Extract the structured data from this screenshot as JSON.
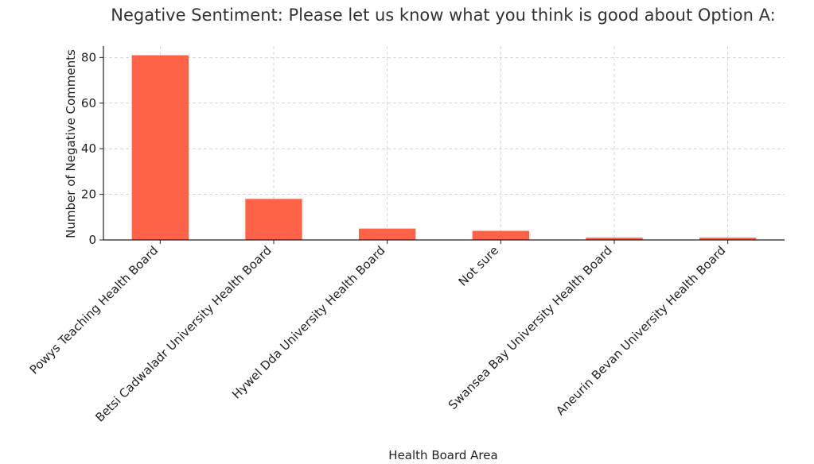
{
  "chart_data": {
    "type": "bar",
    "title": "Negative Sentiment: Please let us know what you think is good about Option A:",
    "xlabel": "Health Board Area",
    "ylabel": "Number of Negative Comments",
    "categories": [
      "Powys Teaching Health Board",
      "Betsi Cadwaladr University Health Board",
      "Hywel Dda University Health Board",
      "Not sure",
      "Swansea Bay University Health Board",
      "Aneurin Bevan University Health Board"
    ],
    "values": [
      81,
      18,
      5,
      4,
      1,
      1
    ],
    "ylim": [
      0,
      85
    ],
    "yticks": [
      0,
      20,
      40,
      60,
      80
    ],
    "grid": true,
    "bar_color": "#ff6347"
  }
}
